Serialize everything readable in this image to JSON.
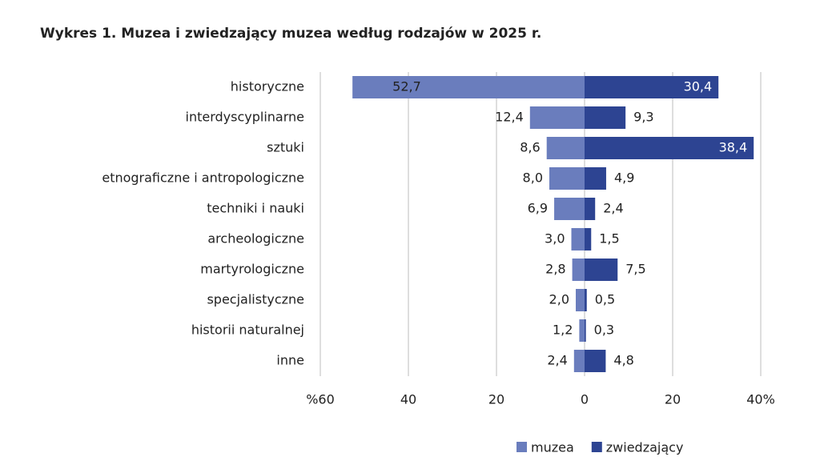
{
  "chart_data": {
    "type": "diverging-bar",
    "title": "Wykres 1. Muzea i zwiedzający muzea według rodzajów w 2025 r.",
    "categories": [
      "historyczne",
      "interdyscyplinarne",
      "sztuki",
      "etnograficzne i antropologiczne",
      "techniki i nauki",
      "archeologiczne",
      "martyrologiczne",
      "specjalistyczne",
      "historii naturalnej",
      "inne"
    ],
    "series": [
      {
        "name": "muzea",
        "color": "#6a7dbd",
        "values": [
          -52.7,
          -12.4,
          -8.6,
          -8.0,
          -6.9,
          -3.0,
          -2.8,
          -2.0,
          -1.2,
          -2.4
        ],
        "value_labels": [
          "52,7",
          "12,4",
          "8,6",
          "8,0",
          "6,9",
          "3,0",
          "2,8",
          "2,0",
          "1,2",
          "2,4"
        ]
      },
      {
        "name": "zwiedzający",
        "color": "#2d4492",
        "values": [
          30.4,
          9.3,
          38.4,
          4.9,
          2.4,
          1.5,
          7.5,
          0.5,
          0.3,
          4.8
        ],
        "value_labels": [
          "30,4",
          "9,3",
          "38,4",
          "4,9",
          "2,4",
          "1,5",
          "7,5",
          "0,5",
          "0,3",
          "4,8"
        ]
      }
    ],
    "xlim": [
      -60,
      40
    ],
    "xticks": [
      {
        "value": -60,
        "label": "%60"
      },
      {
        "value": -40,
        "label": "40"
      },
      {
        "value": -20,
        "label": "20"
      },
      0,
      20,
      {
        "value": 40,
        "label": "40%"
      }
    ],
    "grid": true,
    "legend": "bottom"
  }
}
